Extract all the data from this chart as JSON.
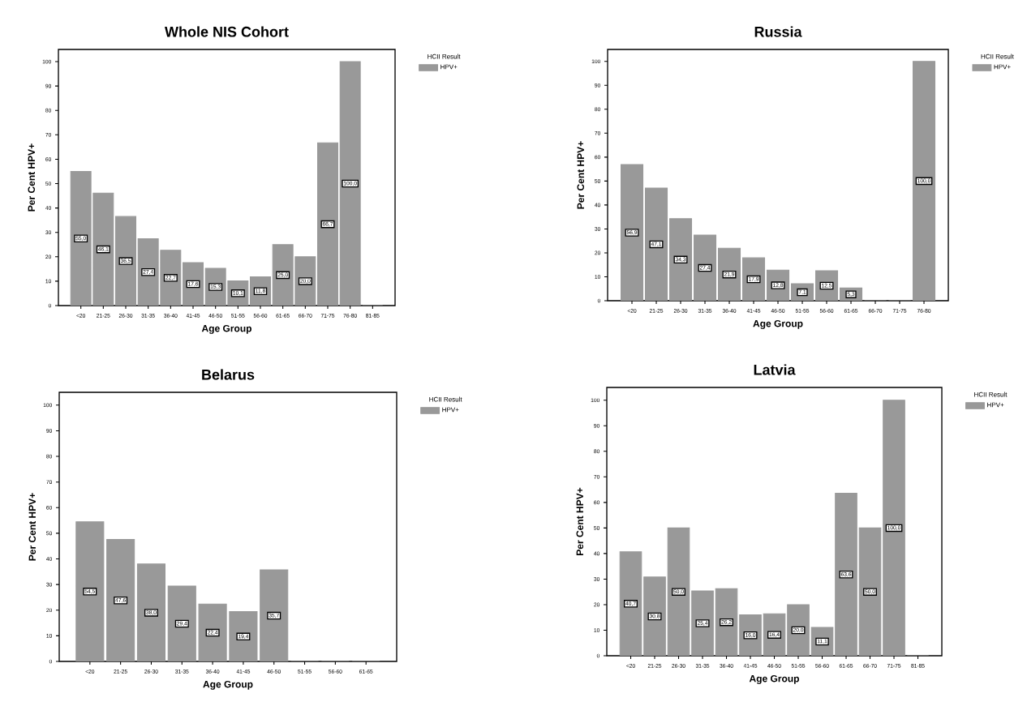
{
  "chart_data": [
    {
      "type": "bar",
      "title": "Whole NIS Cohort",
      "xlabel": "Age Group",
      "ylabel": "Per Cent HPV+",
      "legend_title": "HCII Result",
      "legend": "right",
      "categories": [
        "<20",
        "21-25",
        "26-30",
        "31-35",
        "36-40",
        "41-45",
        "46-50",
        "51-55",
        "56-60",
        "61-65",
        "66-70",
        "71-75",
        "76-80",
        "81-85"
      ],
      "series": [
        {
          "name": "HPV+",
          "color": "#999999",
          "values": [
            55.0,
            46.1,
            36.5,
            27.4,
            22.7,
            17.6,
            15.3,
            10.1,
            11.8,
            25.0,
            20.0,
            66.7,
            100.0,
            0
          ]
        }
      ],
      "value_labels": [
        "55,0",
        "46,1",
        "36,5",
        "27,4",
        "22,7",
        "17,6",
        "15,3",
        "10,1",
        "11,8",
        "25,0",
        "20,0",
        "66,7",
        "100,0",
        null
      ],
      "ylim": [
        0,
        105
      ],
      "yticks": [
        0,
        10,
        20,
        30,
        40,
        50,
        60,
        70,
        80,
        90,
        100
      ]
    },
    {
      "type": "bar",
      "title": "Russia",
      "xlabel": "Age Group",
      "ylabel": "Per Cent HPV+",
      "legend_title": "HCII Result",
      "legend": "right",
      "categories": [
        "<20",
        "21-25",
        "26-30",
        "31-35",
        "36-40",
        "41-45",
        "46-50",
        "51-55",
        "56-60",
        "61-65",
        "66-70",
        "71-75",
        "76-80"
      ],
      "series": [
        {
          "name": "HPV+",
          "color": "#999999",
          "values": [
            56.9,
            47.1,
            34.3,
            27.4,
            21.9,
            17.9,
            12.8,
            7.1,
            12.5,
            5.3,
            0,
            0,
            100.0
          ]
        }
      ],
      "value_labels": [
        "56,9",
        "47,1",
        "34,3",
        "27,4",
        "21,9",
        "17,9",
        "12,8",
        "7,1",
        "12,5",
        "5,3",
        null,
        null,
        "100,0"
      ],
      "ylim": [
        0,
        105
      ],
      "yticks": [
        0,
        10,
        20,
        30,
        40,
        50,
        60,
        70,
        80,
        90,
        100
      ]
    },
    {
      "type": "bar",
      "title": "Belarus",
      "xlabel": "Age Group",
      "ylabel": "Per Cent HPV+",
      "legend_title": "HCII Result",
      "legend": "right",
      "categories": [
        "<20",
        "21-25",
        "26-30",
        "31-35",
        "36-40",
        "41-45",
        "46-50",
        "51-55",
        "56-60",
        "61-65"
      ],
      "series": [
        {
          "name": "HPV+",
          "color": "#999999",
          "values": [
            54.5,
            47.6,
            38.0,
            29.4,
            22.4,
            19.4,
            35.7,
            0,
            0,
            0
          ]
        }
      ],
      "value_labels": [
        "54,5",
        "47,6",
        "38,0",
        "29,4",
        "22,4",
        "19,4",
        "35,7",
        null,
        null,
        null
      ],
      "ylim": [
        0,
        105
      ],
      "yticks": [
        0,
        10,
        20,
        30,
        40,
        50,
        60,
        70,
        80,
        90,
        100
      ]
    },
    {
      "type": "bar",
      "title": "Latvia",
      "xlabel": "Age Group",
      "ylabel": "Per Cent HPV+",
      "legend_title": "HCII Result",
      "legend": "right",
      "categories": [
        "<20",
        "21-25",
        "26-30",
        "31-35",
        "36-40",
        "41-45",
        "46-50",
        "51-55",
        "56-60",
        "61-65",
        "66-70",
        "71-75",
        "81-85"
      ],
      "series": [
        {
          "name": "HPV+",
          "color": "#999999",
          "values": [
            40.7,
            30.8,
            50.0,
            25.4,
            26.2,
            16.0,
            16.4,
            20.0,
            11.1,
            63.6,
            50.0,
            100.0,
            0
          ]
        }
      ],
      "value_labels": [
        "40,7",
        "30,8",
        "50,0",
        "25,4",
        "26,2",
        "16,0",
        "16,4",
        "20,0",
        "11,1",
        "63,6",
        "50,0",
        "100,0",
        null
      ],
      "ylim": [
        0,
        105
      ],
      "yticks": [
        0,
        10,
        20,
        30,
        40,
        50,
        60,
        70,
        80,
        90,
        100
      ]
    }
  ]
}
